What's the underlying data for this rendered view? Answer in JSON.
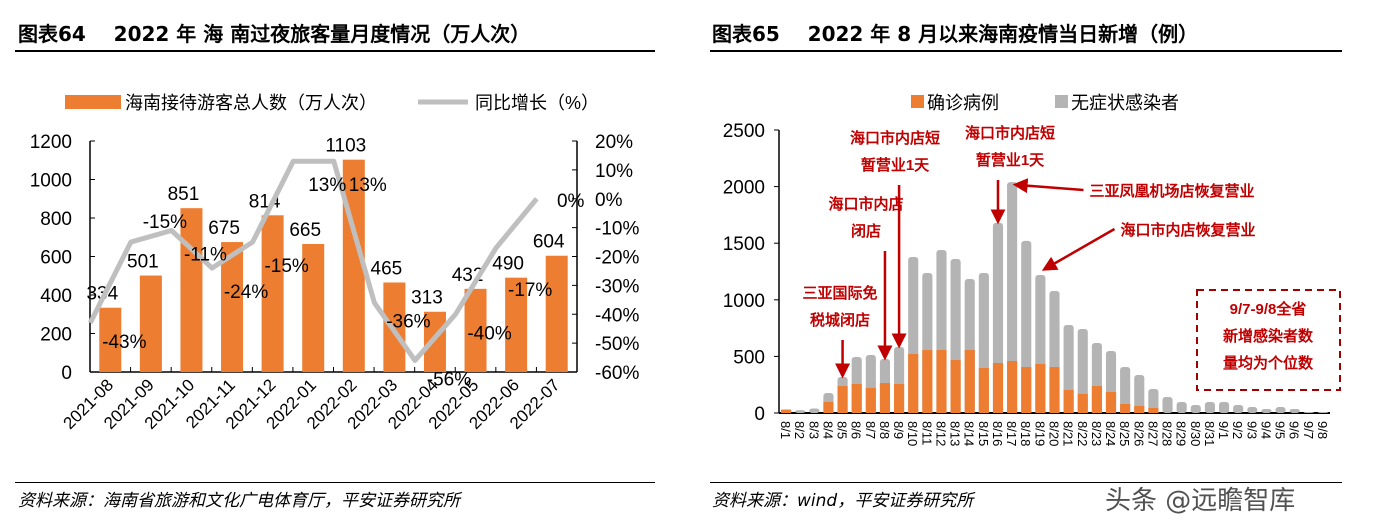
{
  "left": {
    "title": "图表64    2022 年 海 南过夜旅客量月度情况（万人次）",
    "source": "资料来源：海南省旅游和文化广电体育厅，平安证券研究所"
  },
  "right": {
    "title": "图表65    2022 年 8 月以来海南疫情当日新增（例）",
    "source": "资料来源：wind，平安证券研究所"
  },
  "watermark": "头条 @远瞻智库",
  "chart_data": [
    {
      "type": "bar+line",
      "categories": [
        "2021-08",
        "2021-09",
        "2021-10",
        "2021-11",
        "2021-12",
        "2022-01",
        "2022-02",
        "2022-03",
        "2022-04",
        "2022-05",
        "2022-06",
        "2022-07"
      ],
      "series": [
        {
          "name": "海南接待游客总人数（万人次）",
          "type": "bar",
          "axis": "left",
          "color": "#ED7D31",
          "values": [
            334,
            501,
            851,
            675,
            814,
            665,
            1103,
            465,
            313,
            432,
            490,
            604
          ]
        },
        {
          "name": "同比增长（%）",
          "type": "line",
          "axis": "right",
          "color": "#BFBFBF",
          "values": [
            -43,
            -15,
            -11,
            -24,
            -15,
            13,
            13,
            -36,
            -56,
            -40,
            -17,
            0
          ]
        }
      ],
      "ylim": [
        0,
        1200
      ],
      "yticks": [
        0,
        200,
        400,
        600,
        800,
        1000,
        1200
      ],
      "y2lim": [
        -60,
        20
      ],
      "y2ticks": [
        "20%",
        "10%",
        "0%",
        "-10%",
        "-20%",
        "-30%",
        "-40%",
        "-50%",
        "-60%"
      ],
      "legend": "top"
    },
    {
      "type": "stacked-bar",
      "categories": [
        "8/1",
        "8/2",
        "8/3",
        "8/4",
        "8/5",
        "8/6",
        "8/7",
        "8/8",
        "8/9",
        "8/10",
        "8/11",
        "8/12",
        "8/13",
        "8/14",
        "8/15",
        "8/16",
        "8/17",
        "8/18",
        "8/19",
        "8/20",
        "8/21",
        "8/22",
        "8/23",
        "8/24",
        "8/25",
        "8/26",
        "8/27",
        "8/28",
        "8/29",
        "8/30",
        "8/31",
        "9/1",
        "9/2",
        "9/3",
        "9/4",
        "9/5",
        "9/6",
        "9/7",
        "9/8"
      ],
      "series": [
        {
          "name": "确诊病例",
          "color": "#ED7D31",
          "values": [
            30,
            0,
            0,
            97,
            238,
            256,
            221,
            265,
            256,
            521,
            556,
            556,
            468,
            556,
            397,
            442,
            459,
            406,
            433,
            406,
            203,
            168,
            238,
            186,
            80,
            62,
            44,
            0,
            0,
            0,
            0,
            0,
            0,
            0,
            0,
            0,
            0,
            0,
            0
          ]
        },
        {
          "name": "无症状感染者",
          "color": "#B4B4B4",
          "values": [
            0,
            25,
            40,
            80,
            80,
            239,
            291,
            212,
            327,
            857,
            681,
            884,
            892,
            628,
            840,
            1238,
            1581,
            1114,
            786,
            672,
            574,
            574,
            380,
            362,
            326,
            274,
            168,
            141,
            97,
            71,
            97,
            97,
            71,
            53,
            35,
            53,
            35,
            9,
            9
          ]
        }
      ],
      "ylim": [
        0,
        2500
      ],
      "yticks": [
        0,
        500,
        1000,
        1500,
        2000,
        2500
      ],
      "legend": "top",
      "annotations": [
        {
          "text": [
            "三亚国际免",
            "税城闭店"
          ],
          "target": "8/5"
        },
        {
          "text": [
            "海口市内店",
            "闭店"
          ],
          "target": "8/8"
        },
        {
          "text": [
            "海口市内店短",
            "暂营业1天"
          ],
          "target": "8/9"
        },
        {
          "text": [
            "海口市内店短",
            "暂营业1天"
          ],
          "target": "8/16"
        },
        {
          "text": [
            "三亚凤凰机场店恢复营业"
          ],
          "target": "8/17"
        },
        {
          "text": [
            "海口市内店恢复营业"
          ],
          "target": "8/19"
        }
      ],
      "note": [
        "9/7-9/8全省",
        "新增感染者数",
        "量均为个位数"
      ]
    }
  ]
}
